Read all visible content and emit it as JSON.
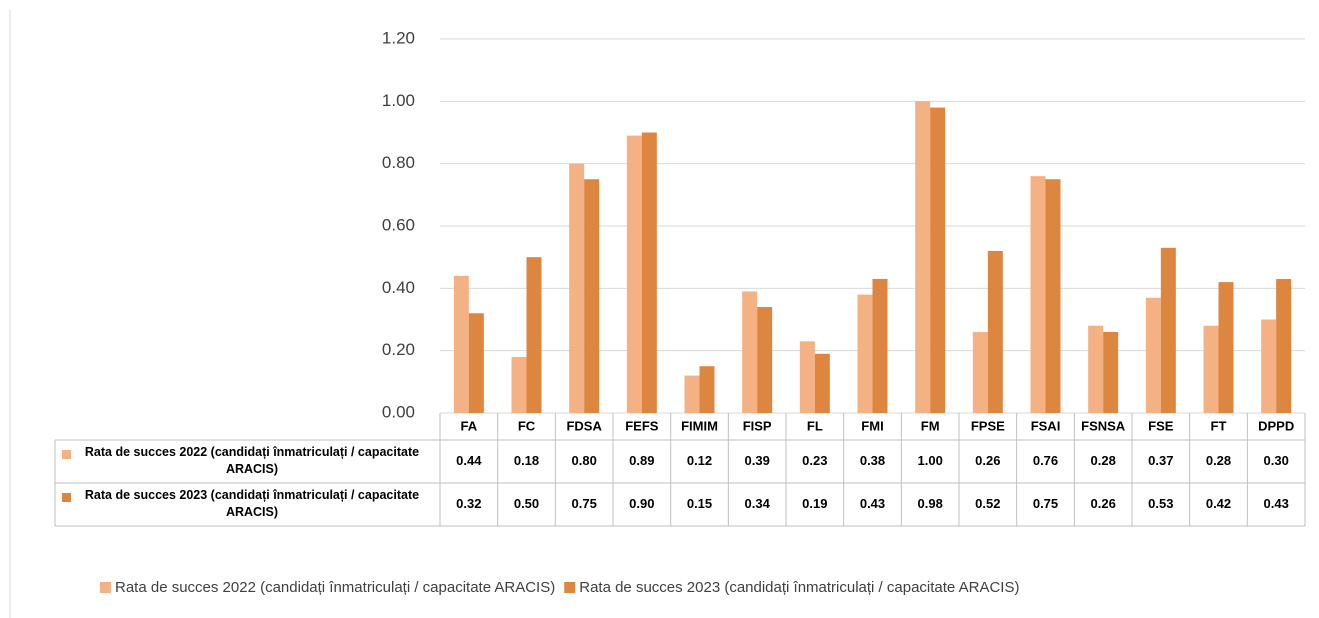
{
  "chart_data": {
    "type": "bar",
    "categories": [
      "FA",
      "FC",
      "FDSA",
      "FEFS",
      "FIMIM",
      "FISP",
      "FL",
      "FMI",
      "FM",
      "FPSE",
      "FSAI",
      "FSNSA",
      "FSE",
      "FT",
      "DPPD"
    ],
    "series": [
      {
        "name": "Rata de succes 2022 (candidați înmatriculați / capacitate ARACIS)",
        "color": "#f4b183",
        "values": [
          0.44,
          0.18,
          0.8,
          0.89,
          0.12,
          0.39,
          0.23,
          0.38,
          1.0,
          0.26,
          0.76,
          0.28,
          0.37,
          0.28,
          0.3
        ],
        "value_labels": [
          "0.44",
          "0.18",
          "0.80",
          "0.89",
          "0.12",
          "0.39",
          "0.23",
          "0.38",
          "1.00",
          "0.26",
          "0.76",
          "0.28",
          "0.37",
          "0.28",
          "0.30"
        ]
      },
      {
        "name": "Rata de succes 2023 (candidați înmatriculați / capacitate ARACIS)",
        "color": "#dc8640",
        "values": [
          0.32,
          0.5,
          0.75,
          0.9,
          0.15,
          0.34,
          0.19,
          0.43,
          0.98,
          0.52,
          0.75,
          0.26,
          0.53,
          0.42,
          0.43
        ],
        "value_labels": [
          "0.32",
          "0.50",
          "0.75",
          "0.90",
          "0.15",
          "0.34",
          "0.19",
          "0.43",
          "0.98",
          "0.52",
          "0.75",
          "0.26",
          "0.53",
          "0.42",
          "0.43"
        ]
      }
    ],
    "ylim": [
      0,
      1.2
    ],
    "yticks": [
      {
        "value": 0,
        "label": "0.00"
      },
      {
        "value": 0.2,
        "label": "0.20"
      },
      {
        "value": 0.4,
        "label": "0.40"
      },
      {
        "value": 0.6,
        "label": "0.60"
      },
      {
        "value": 0.8,
        "label": "0.80"
      },
      {
        "value": 1.0,
        "label": "1.00"
      },
      {
        "value": 1.2,
        "label": "1.20"
      }
    ],
    "grid": true,
    "legend": "bottom",
    "data_table": true
  }
}
